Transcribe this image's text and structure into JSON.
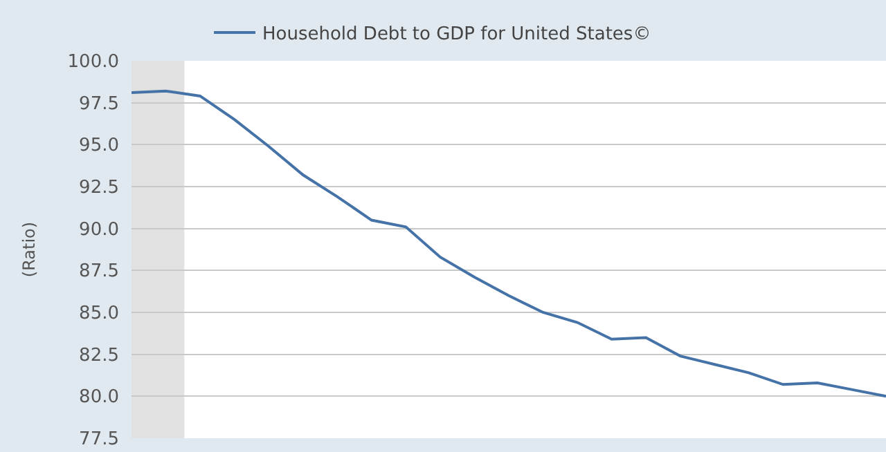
{
  "chart_data": {
    "type": "line",
    "categories": [
      null,
      null,
      null,
      null,
      null,
      null,
      null,
      null,
      null,
      null,
      null,
      null,
      null,
      null,
      null,
      null,
      null,
      null,
      null,
      null,
      null,
      null,
      null
    ],
    "series": [
      {
        "name": "Household Debt to GDP for United States©",
        "color": "#4572a7",
        "values": [
          98.1,
          98.2,
          97.9,
          96.5,
          94.9,
          93.2,
          91.9,
          90.5,
          90.1,
          88.3,
          87.1,
          86.0,
          85.0,
          84.4,
          83.4,
          83.5,
          82.4,
          81.9,
          81.4,
          80.7,
          80.8,
          80.4,
          80.0
        ]
      }
    ],
    "ylabel": "(Ratio)",
    "ylim": [
      77.5,
      100
    ],
    "yticks": [
      {
        "value": 77.5,
        "label": "77.5"
      },
      {
        "value": 80,
        "label": "80.0"
      },
      {
        "value": 82.5,
        "label": "82.5"
      },
      {
        "value": 85,
        "label": "85.0"
      },
      {
        "value": 87.5,
        "label": "87.5"
      },
      {
        "value": 90,
        "label": "90.0"
      },
      {
        "value": 92.5,
        "label": "92.5"
      },
      {
        "value": 95,
        "label": "95.0"
      },
      {
        "value": 97.5,
        "label": "97.5"
      },
      {
        "value": 100,
        "label": "100.0"
      }
    ],
    "grid": "y",
    "legend": "top",
    "tick_labels": "y",
    "marker": "none",
    "line_style": "solid"
  }
}
